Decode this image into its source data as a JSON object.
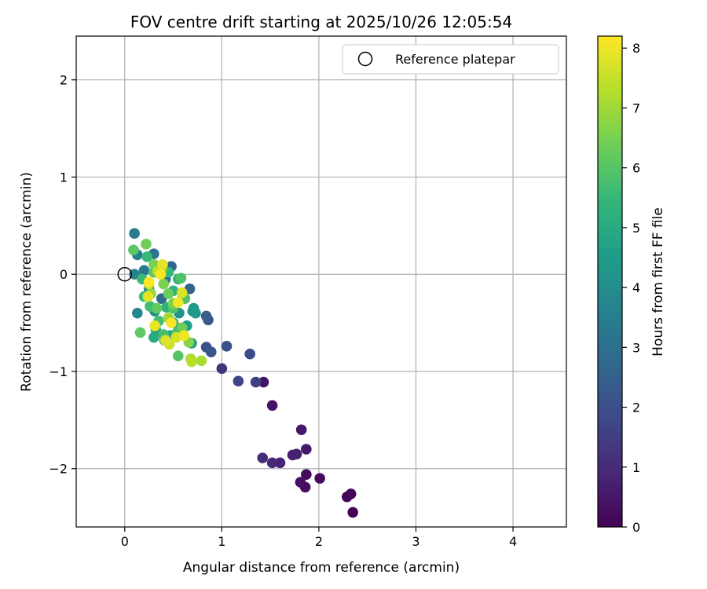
{
  "chart_data": {
    "type": "scatter",
    "title": "FOV centre drift starting at 2025/10/26 12:05:54",
    "xlabel": "Angular distance from reference (arcmin)",
    "ylabel": "Rotation from reference (arcmin)",
    "xlim": [
      -0.5,
      4.55
    ],
    "ylim": [
      -2.6,
      2.45
    ],
    "xticks": [
      0,
      1,
      2,
      3,
      4
    ],
    "xtick_labels": [
      "0",
      "1",
      "2",
      "3",
      "4"
    ],
    "yticks": [
      -2,
      -1,
      0,
      1,
      2
    ],
    "ytick_labels": [
      "−2",
      "−1",
      "0",
      "1",
      "2"
    ],
    "grid": true,
    "legend": {
      "position": "top-right",
      "entries": [
        "Reference platepar"
      ]
    },
    "reference_point": {
      "x": 0,
      "y": 0,
      "label": "Reference platepar"
    },
    "colorbar": {
      "label": "Hours from first FF file",
      "min": 0,
      "max": 8.2,
      "ticks": [
        0,
        1,
        2,
        3,
        4,
        5,
        6,
        7,
        8
      ],
      "tick_labels": [
        "0",
        "1",
        "2",
        "3",
        "4",
        "5",
        "6",
        "7",
        "8"
      ],
      "colormap": [
        "#440154",
        "#482878",
        "#3e4989",
        "#31688e",
        "#26828e",
        "#1f9e89",
        "#35b779",
        "#6ece58",
        "#b5de2b",
        "#fde725"
      ]
    },
    "points": [
      {
        "x": 2.35,
        "y": -2.45,
        "c": 0.05
      },
      {
        "x": 2.33,
        "y": -2.26,
        "c": 0.1
      },
      {
        "x": 2.29,
        "y": -2.29,
        "c": 0.15
      },
      {
        "x": 2.01,
        "y": -2.1,
        "c": 0.2
      },
      {
        "x": 1.87,
        "y": -2.06,
        "c": 0.25
      },
      {
        "x": 1.86,
        "y": -2.19,
        "c": 0.3
      },
      {
        "x": 1.81,
        "y": -2.14,
        "c": 0.35
      },
      {
        "x": 1.52,
        "y": -1.35,
        "c": 0.4
      },
      {
        "x": 1.43,
        "y": -1.11,
        "c": 0.45
      },
      {
        "x": 1.82,
        "y": -1.6,
        "c": 0.5
      },
      {
        "x": 1.87,
        "y": -1.8,
        "c": 0.55
      },
      {
        "x": 1.77,
        "y": -1.85,
        "c": 0.65
      },
      {
        "x": 1.73,
        "y": -1.86,
        "c": 0.75
      },
      {
        "x": 1.6,
        "y": -1.94,
        "c": 0.85
      },
      {
        "x": 1.52,
        "y": -1.94,
        "c": 0.95
      },
      {
        "x": 1.42,
        "y": -1.89,
        "c": 1.05
      },
      {
        "x": 1.0,
        "y": -0.97,
        "c": 1.2
      },
      {
        "x": 1.35,
        "y": -1.11,
        "c": 1.6
      },
      {
        "x": 1.17,
        "y": -1.1,
        "c": 1.75
      },
      {
        "x": 1.29,
        "y": -0.82,
        "c": 1.9
      },
      {
        "x": 1.05,
        "y": -0.74,
        "c": 2.0
      },
      {
        "x": 0.84,
        "y": -0.75,
        "c": 2.1
      },
      {
        "x": 0.89,
        "y": -0.8,
        "c": 2.15
      },
      {
        "x": 0.86,
        "y": -0.47,
        "c": 2.3
      },
      {
        "x": 0.84,
        "y": -0.43,
        "c": 2.4
      },
      {
        "x": 0.67,
        "y": -0.15,
        "c": 2.55
      },
      {
        "x": 0.48,
        "y": 0.08,
        "c": 2.7
      },
      {
        "x": 0.38,
        "y": -0.25,
        "c": 2.85
      },
      {
        "x": 0.42,
        "y": -0.05,
        "c": 3.0
      },
      {
        "x": 0.3,
        "y": 0.21,
        "c": 3.15
      },
      {
        "x": 0.2,
        "y": 0.04,
        "c": 3.3
      },
      {
        "x": 0.1,
        "y": 0.42,
        "c": 3.45
      },
      {
        "x": 0.13,
        "y": 0.2,
        "c": 3.55
      },
      {
        "x": 0.1,
        "y": 0.0,
        "c": 3.7
      },
      {
        "x": 0.13,
        "y": -0.4,
        "c": 3.8
      },
      {
        "x": 0.25,
        "y": -0.15,
        "c": 3.95
      },
      {
        "x": 0.31,
        "y": -0.38,
        "c": 4.05
      },
      {
        "x": 0.56,
        "y": -0.4,
        "c": 4.15
      },
      {
        "x": 0.7,
        "y": -0.38,
        "c": 4.3
      },
      {
        "x": 0.73,
        "y": -0.4,
        "c": 4.35
      },
      {
        "x": 0.71,
        "y": -0.35,
        "c": 4.45
      },
      {
        "x": 0.64,
        "y": -0.53,
        "c": 4.55
      },
      {
        "x": 0.69,
        "y": -0.71,
        "c": 4.65
      },
      {
        "x": 0.47,
        "y": -0.63,
        "c": 4.75
      },
      {
        "x": 0.32,
        "y": -0.57,
        "c": 4.85
      },
      {
        "x": 0.3,
        "y": -0.65,
        "c": 4.95
      },
      {
        "x": 0.41,
        "y": -0.68,
        "c": 5.05
      },
      {
        "x": 0.5,
        "y": -0.5,
        "c": 5.1
      },
      {
        "x": 0.43,
        "y": -0.34,
        "c": 5.2
      },
      {
        "x": 0.5,
        "y": -0.17,
        "c": 5.25
      },
      {
        "x": 0.6,
        "y": -0.23,
        "c": 5.3
      },
      {
        "x": 0.55,
        "y": -0.05,
        "c": 5.4
      },
      {
        "x": 0.45,
        "y": 0.02,
        "c": 5.45
      },
      {
        "x": 0.23,
        "y": 0.18,
        "c": 5.5
      },
      {
        "x": 0.18,
        "y": -0.05,
        "c": 5.55
      },
      {
        "x": 0.2,
        "y": -0.23,
        "c": 5.6
      },
      {
        "x": 0.26,
        "y": -0.33,
        "c": 5.65
      },
      {
        "x": 0.35,
        "y": -0.48,
        "c": 5.7
      },
      {
        "x": 0.4,
        "y": -0.62,
        "c": 5.75
      },
      {
        "x": 0.54,
        "y": -0.6,
        "c": 5.8
      },
      {
        "x": 0.62,
        "y": -0.25,
        "c": 5.85
      },
      {
        "x": 0.58,
        "y": -0.04,
        "c": 5.9
      },
      {
        "x": 0.5,
        "y": -0.35,
        "c": 5.95
      },
      {
        "x": 0.55,
        "y": -0.84,
        "c": 6.0
      },
      {
        "x": 0.3,
        "y": 0.02,
        "c": 6.05
      },
      {
        "x": 0.09,
        "y": 0.25,
        "c": 6.1
      },
      {
        "x": 0.16,
        "y": -0.6,
        "c": 6.15
      },
      {
        "x": 0.33,
        "y": -0.35,
        "c": 6.2
      },
      {
        "x": 0.45,
        "y": -0.2,
        "c": 6.3
      },
      {
        "x": 0.59,
        "y": -0.55,
        "c": 6.35
      },
      {
        "x": 0.22,
        "y": 0.31,
        "c": 6.4
      },
      {
        "x": 0.3,
        "y": 0.1,
        "c": 6.5
      },
      {
        "x": 0.4,
        "y": -0.1,
        "c": 6.55
      },
      {
        "x": 0.5,
        "y": -0.3,
        "c": 6.6
      },
      {
        "x": 0.66,
        "y": -0.7,
        "c": 6.7
      },
      {
        "x": 0.38,
        "y": 0.05,
        "c": 6.8
      },
      {
        "x": 0.27,
        "y": -0.2,
        "c": 6.9
      },
      {
        "x": 0.45,
        "y": -0.45,
        "c": 7.0
      },
      {
        "x": 0.79,
        "y": -0.89,
        "c": 7.1
      },
      {
        "x": 0.68,
        "y": -0.87,
        "c": 7.2
      },
      {
        "x": 0.69,
        "y": -0.9,
        "c": 7.3
      },
      {
        "x": 0.34,
        "y": 0.03,
        "c": 7.4
      },
      {
        "x": 0.25,
        "y": -0.1,
        "c": 7.5
      },
      {
        "x": 0.46,
        "y": -0.72,
        "c": 7.6
      },
      {
        "x": 0.53,
        "y": -0.65,
        "c": 7.7
      },
      {
        "x": 0.59,
        "y": -0.19,
        "c": 7.75
      },
      {
        "x": 0.42,
        "y": -0.68,
        "c": 7.8
      },
      {
        "x": 0.24,
        "y": -0.23,
        "c": 7.85
      },
      {
        "x": 0.39,
        "y": 0.1,
        "c": 7.9
      },
      {
        "x": 0.31,
        "y": -0.53,
        "c": 7.95
      },
      {
        "x": 0.61,
        "y": -0.63,
        "c": 8.0
      },
      {
        "x": 0.55,
        "y": -0.29,
        "c": 8.05
      },
      {
        "x": 0.48,
        "y": -0.5,
        "c": 8.1
      },
      {
        "x": 0.37,
        "y": 0.0,
        "c": 8.15
      },
      {
        "x": 0.25,
        "y": -0.08,
        "c": 8.2
      }
    ]
  }
}
